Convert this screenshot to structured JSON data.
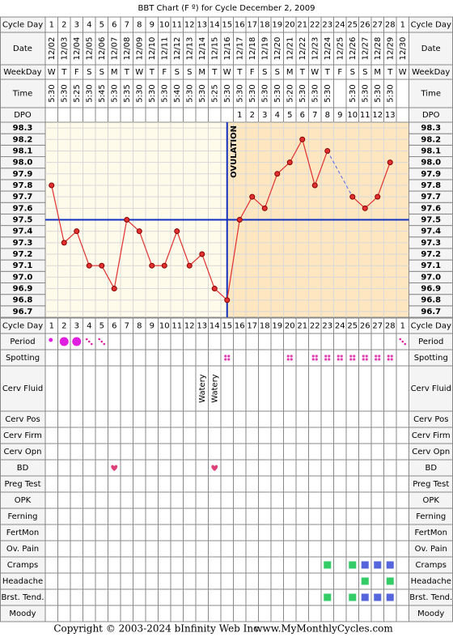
{
  "chart_data": {
    "type": "line",
    "title": "BBT Chart (F º) for Cycle December 2, 2009",
    "top_labels": [
      "Cycle Day",
      "Date",
      "WeekDay",
      "Time",
      "DPO"
    ],
    "categories": [
      "1",
      "2",
      "3",
      "4",
      "5",
      "6",
      "7",
      "8",
      "9",
      "10",
      "11",
      "12",
      "13",
      "14",
      "15",
      "16",
      "17",
      "18",
      "19",
      "20",
      "21",
      "22",
      "23",
      "24",
      "25",
      "26",
      "27",
      "28",
      "1"
    ],
    "dates": [
      "12/02",
      "12/03",
      "12/04",
      "12/05",
      "12/06",
      "12/07",
      "12/08",
      "12/09",
      "12/10",
      "12/11",
      "12/12",
      "12/13",
      "12/14",
      "12/15",
      "12/16",
      "12/17",
      "12/18",
      "12/19",
      "12/20",
      "12/21",
      "12/22",
      "12/23",
      "12/24",
      "12/25",
      "12/26",
      "12/27",
      "12/28",
      "12/29",
      "12/30"
    ],
    "weekdays": [
      "W",
      "T",
      "F",
      "S",
      "S",
      "M",
      "T",
      "W",
      "T",
      "F",
      "S",
      "S",
      "M",
      "T",
      "W",
      "T",
      "F",
      "S",
      "S",
      "M",
      "T",
      "W",
      "T",
      "F",
      "S",
      "S",
      "M",
      "T",
      "W"
    ],
    "times": [
      "5:30",
      "5:30",
      "5:25",
      "5:30",
      "5:45",
      "5:30",
      "5:35",
      "5:30",
      "5:30",
      "5:30",
      "5:40",
      "5:30",
      "5:30",
      "5:25",
      "5:30",
      "5:30",
      "5:30",
      "5:30",
      "5:30",
      "5:20",
      "5:30",
      "5:30",
      "5:30",
      null,
      "5:30",
      "5:30",
      "5:30",
      "5:30",
      null
    ],
    "dpo": [
      null,
      null,
      null,
      null,
      null,
      null,
      null,
      null,
      null,
      null,
      null,
      null,
      null,
      null,
      null,
      1,
      2,
      3,
      4,
      5,
      6,
      7,
      8,
      9,
      10,
      11,
      12,
      13,
      null
    ],
    "values": [
      97.8,
      97.3,
      97.4,
      97.1,
      97.1,
      96.9,
      97.5,
      97.4,
      97.1,
      97.1,
      97.4,
      97.1,
      97.2,
      96.9,
      96.8,
      97.5,
      97.7,
      97.6,
      97.9,
      98.0,
      98.2,
      97.8,
      98.1,
      null,
      97.7,
      97.6,
      97.7,
      98.0,
      null
    ],
    "color": "#e03030",
    "ylim": [
      96.65,
      98.35
    ],
    "yticks": [
      96.7,
      96.8,
      96.9,
      {
        "value": 97.0,
        "label": "97.0"
      },
      97.1,
      97.2,
      97.3,
      97.4,
      97.5,
      97.6,
      97.7,
      97.8,
      97.9,
      {
        "value": 98.0,
        "label": "98.0"
      },
      98.1,
      98.2,
      98.3
    ],
    "grid": true,
    "coverline": 97.5,
    "ovulation_day": 15,
    "ovulation_label": "OVULATION",
    "observations": [
      {
        "label": "Period",
        "marks": [
          "dot",
          "big",
          "big",
          "spot",
          "spot",
          null,
          null,
          null,
          null,
          null,
          null,
          null,
          null,
          null,
          null,
          null,
          null,
          null,
          null,
          null,
          null,
          null,
          null,
          null,
          null,
          null,
          null,
          null,
          "spot"
        ]
      },
      {
        "label": "Spotting",
        "marks": [
          null,
          null,
          null,
          null,
          null,
          null,
          null,
          null,
          null,
          null,
          null,
          null,
          null,
          null,
          "spot",
          null,
          null,
          null,
          null,
          "spot",
          null,
          "spot",
          "spot",
          "spot",
          "spot",
          "spot",
          "spot",
          "spot",
          null
        ]
      },
      {
        "label": "Cerv Fluid",
        "marks": [
          null,
          null,
          null,
          null,
          null,
          null,
          null,
          null,
          null,
          null,
          null,
          null,
          "Watery",
          "Watery",
          null,
          null,
          null,
          null,
          null,
          null,
          null,
          null,
          null,
          null,
          null,
          null,
          null,
          null,
          null
        ]
      },
      {
        "label": "Cerv Pos"
      },
      {
        "label": "Cerv Firm"
      },
      {
        "label": "Cerv Opn"
      },
      {
        "label": "BD",
        "marks": [
          null,
          null,
          null,
          null,
          null,
          "heart",
          null,
          null,
          null,
          null,
          null,
          null,
          null,
          "heart",
          null,
          null,
          null,
          null,
          null,
          null,
          null,
          null,
          null,
          null,
          null,
          null,
          null,
          null,
          null
        ]
      },
      {
        "label": "Preg Test"
      },
      {
        "label": "OPK"
      },
      {
        "label": "Ferning"
      },
      {
        "label": "FertMon"
      },
      {
        "label": "Ov. Pain"
      },
      {
        "label": "Cramps",
        "marks": [
          null,
          null,
          null,
          null,
          null,
          null,
          null,
          null,
          null,
          null,
          null,
          null,
          null,
          null,
          null,
          null,
          null,
          null,
          null,
          null,
          null,
          null,
          "#33cc66",
          null,
          "#33cc66",
          "#5566dd",
          "#5566dd",
          "#5566dd",
          null
        ]
      },
      {
        "label": "Headache",
        "marks": [
          null,
          null,
          null,
          null,
          null,
          null,
          null,
          null,
          null,
          null,
          null,
          null,
          null,
          null,
          null,
          null,
          null,
          null,
          null,
          null,
          null,
          null,
          null,
          null,
          null,
          "#33cc66",
          null,
          "#33cc66",
          null
        ]
      },
      {
        "label": "Brst. Tend.",
        "marks": [
          null,
          null,
          null,
          null,
          null,
          null,
          null,
          null,
          null,
          null,
          null,
          null,
          null,
          null,
          null,
          null,
          null,
          null,
          null,
          null,
          null,
          null,
          "#33cc66",
          null,
          "#33cc66",
          "#5566dd",
          "#5566dd",
          "#5566dd",
          null
        ]
      },
      {
        "label": "Moody"
      }
    ]
  },
  "footer": {
    "copyright": "Copyright © 2003-2024 bInfinity Web Inc.",
    "site": "www.MyMonthlyCycles.com"
  }
}
